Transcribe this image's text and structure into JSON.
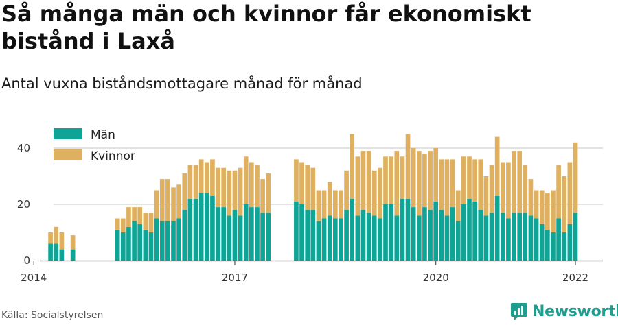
{
  "title": "Så många män och kvinnor får ekonomiskt bistånd i Laxå",
  "subtitle": "Antal vuxna biståndsmottagare månad för månad",
  "source": "Källa: Socialstyrelsen",
  "logo": {
    "name": "Newsworthy",
    "icon": "bar-chart-logo-icon"
  },
  "colors": {
    "men": "#0fa596",
    "women": "#deb060",
    "grid": "#d9d9d9",
    "axis": "#555555"
  },
  "chart_data": {
    "type": "bar",
    "stacked": true,
    "x_unit": "month",
    "x_start": "2014-01",
    "x_end": "2022-02",
    "xticks": [
      "2014",
      "2017",
      "2020",
      "2022"
    ],
    "ylim": [
      0,
      45
    ],
    "yticks": [
      0,
      20,
      40
    ],
    "grid": true,
    "legend_position": "top-left",
    "series": [
      {
        "name": "Män",
        "segments": [
          {
            "start": "2014-04",
            "values": [
              6,
              6,
              4
            ]
          },
          {
            "start": "2014-08",
            "values": [
              4
            ]
          },
          {
            "start": "2015-04",
            "values": [
              11,
              10,
              12,
              14,
              13,
              11,
              10,
              15,
              14,
              14,
              14,
              15,
              18,
              22,
              22,
              24,
              24,
              23,
              19,
              19,
              16,
              18,
              16,
              20,
              19,
              19,
              17,
              17
            ]
          },
          {
            "start": "2017-12",
            "values": [
              21,
              20,
              18,
              18,
              14,
              15,
              16,
              15,
              15,
              18,
              22,
              16,
              18,
              17,
              16,
              15,
              20,
              20,
              16,
              22,
              22,
              19,
              16,
              19,
              18,
              21,
              18,
              16,
              19,
              14,
              20,
              22,
              21,
              18,
              16,
              17,
              23,
              17,
              15,
              17,
              17,
              17,
              16,
              15,
              13,
              11,
              10,
              15,
              10,
              13,
              17
            ]
          }
        ]
      },
      {
        "name": "Kvinnor",
        "segments": [
          {
            "start": "2014-04",
            "values": [
              4,
              6,
              6
            ]
          },
          {
            "start": "2014-08",
            "values": [
              5
            ]
          },
          {
            "start": "2015-04",
            "values": [
              4,
              5,
              7,
              5,
              6,
              6,
              7,
              10,
              15,
              15,
              12,
              12,
              13,
              12,
              12,
              12,
              11,
              13,
              14,
              14,
              16,
              14,
              17,
              17,
              16,
              15,
              12,
              14
            ]
          },
          {
            "start": "2017-12",
            "values": [
              15,
              15,
              16,
              15,
              11,
              10,
              12,
              10,
              10,
              14,
              23,
              21,
              21,
              22,
              16,
              18,
              17,
              17,
              23,
              15,
              23,
              21,
              23,
              19,
              21,
              19,
              18,
              20,
              17,
              11,
              17,
              15,
              15,
              18,
              14,
              17,
              21,
              18,
              20,
              22,
              22,
              17,
              13,
              10,
              12,
              13,
              15,
              19,
              20,
              22,
              25
            ]
          }
        ]
      }
    ]
  }
}
